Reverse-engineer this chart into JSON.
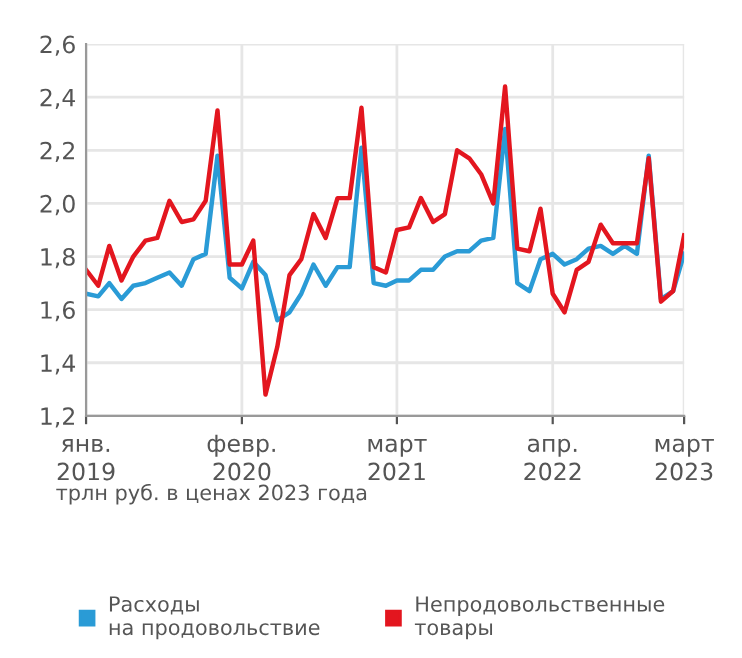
{
  "chart_data": {
    "type": "line",
    "x": [
      "2019-01",
      "2019-02",
      "2019-03",
      "2019-04",
      "2019-05",
      "2019-06",
      "2019-07",
      "2019-08",
      "2019-09",
      "2019-10",
      "2019-11",
      "2019-12",
      "2020-01",
      "2020-02",
      "2020-03",
      "2020-04",
      "2020-05",
      "2020-06",
      "2020-07",
      "2020-08",
      "2020-09",
      "2020-10",
      "2020-11",
      "2020-12",
      "2021-01",
      "2021-02",
      "2021-03",
      "2021-04",
      "2021-05",
      "2021-06",
      "2021-07",
      "2021-08",
      "2021-09",
      "2021-10",
      "2021-11",
      "2021-12",
      "2022-01",
      "2022-02",
      "2022-03",
      "2022-04",
      "2022-05",
      "2022-06",
      "2022-07",
      "2022-08",
      "2022-09",
      "2022-10",
      "2022-11",
      "2022-12",
      "2023-01",
      "2023-02",
      "2023-03"
    ],
    "series": [
      {
        "name": "Расходы\nна продовольствие",
        "color": "#2a9bd6",
        "values": [
          1.66,
          1.65,
          1.7,
          1.64,
          1.69,
          1.7,
          1.72,
          1.74,
          1.69,
          1.79,
          1.81,
          2.18,
          1.72,
          1.68,
          1.78,
          1.73,
          1.56,
          1.59,
          1.66,
          1.77,
          1.69,
          1.76,
          1.76,
          2.21,
          1.7,
          1.69,
          1.71,
          1.71,
          1.75,
          1.75,
          1.8,
          1.82,
          1.82,
          1.86,
          1.87,
          2.28,
          1.7,
          1.67,
          1.79,
          1.81,
          1.77,
          1.79,
          1.83,
          1.84,
          1.81,
          1.84,
          1.81,
          2.18,
          1.64,
          1.67,
          1.81
        ]
      },
      {
        "name": "Непродовольственные\nтовары",
        "color": "#e3161f",
        "values": [
          1.75,
          1.69,
          1.84,
          1.71,
          1.8,
          1.86,
          1.87,
          2.01,
          1.93,
          1.94,
          2.01,
          2.35,
          1.77,
          1.77,
          1.86,
          1.28,
          1.46,
          1.73,
          1.79,
          1.96,
          1.87,
          2.02,
          2.02,
          2.36,
          1.76,
          1.74,
          1.9,
          1.91,
          2.02,
          1.93,
          1.96,
          2.2,
          2.17,
          2.11,
          2.0,
          2.44,
          1.83,
          1.82,
          1.98,
          1.66,
          1.59,
          1.75,
          1.78,
          1.92,
          1.85,
          1.85,
          1.85,
          2.17,
          1.63,
          1.67,
          1.88
        ]
      }
    ],
    "xlim": [
      "2019-01",
      "2023-03"
    ],
    "xticks": [
      {
        "value": "2019-01",
        "label": "янв.\n2019"
      },
      {
        "value": "2020-02",
        "label": "февр.\n2020"
      },
      {
        "value": "2021-03",
        "label": "март\n2021"
      },
      {
        "value": "2022-04",
        "label": "апр.\n2022"
      },
      {
        "value": "2023-03",
        "label": "март\n2023"
      }
    ],
    "ylim": [
      1.2,
      2.6
    ],
    "yticks": [
      {
        "value": 1.2,
        "label": "1,2"
      },
      {
        "value": 1.4,
        "label": "1,4"
      },
      {
        "value": 1.6,
        "label": "1,6"
      },
      {
        "value": 1.8,
        "label": "1,8"
      },
      {
        "value": 2.0,
        "label": "2,0"
      },
      {
        "value": 2.2,
        "label": "2,2"
      },
      {
        "value": 2.4,
        "label": "2,4"
      },
      {
        "value": 2.6,
        "label": "2,6"
      }
    ],
    "grid": true,
    "legend": "bottom",
    "marker": "none",
    "line_style": "solid",
    "annotations": [
      "трлн руб. в ценах 2023 года"
    ]
  }
}
